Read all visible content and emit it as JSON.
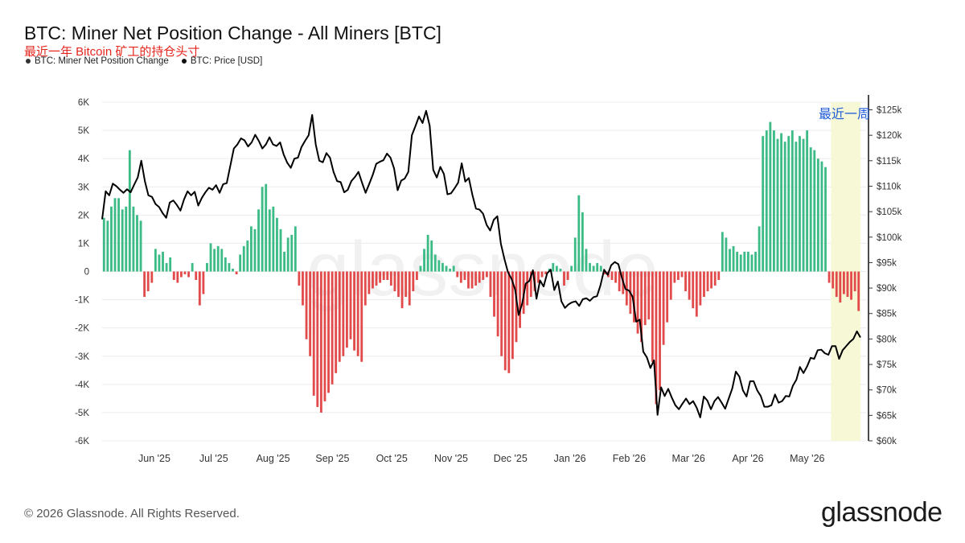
{
  "header": {
    "title": "BTC: Miner Net Position Change - All Miners [BTC]",
    "subtitle": "最近一年 Bitcoin 矿工的持仓头寸"
  },
  "legend": [
    {
      "label": "BTC: Miner Net Position Change",
      "color": "#333333"
    },
    {
      "label": "BTC: Price [USD]",
      "color": "#111111"
    }
  ],
  "annotation": "最近一周",
  "footer": {
    "copyright": "© 2026 Glassnode. All Rights Reserved.",
    "brand": "glassnode",
    "watermark": "glassnode"
  },
  "colors": {
    "positive": "#3dbb87",
    "negative": "#e24b4b",
    "price": "#000000",
    "highlight": "#f7f9d6",
    "annotation": "#1f5bd8"
  },
  "chart_data": {
    "type": "bar",
    "x_ticks": [
      "Jun '25",
      "Jul '25",
      "Aug '25",
      "Sep '25",
      "Oct '25",
      "Nov '25",
      "Dec '25",
      "Jan '26",
      "Feb '26",
      "Mar '26",
      "Apr '26",
      "May '26"
    ],
    "y_left": {
      "range": [
        -6000,
        6000
      ],
      "ticks": [
        "-6K",
        "-5K",
        "-4K",
        "-3K",
        "-2K",
        "-1K",
        "0",
        "1K",
        "2K",
        "3K",
        "4K",
        "5K",
        "6K"
      ]
    },
    "y_right": {
      "range": [
        60000,
        126500
      ],
      "ticks": [
        "$60k",
        "$65k",
        "$70k",
        "$75k",
        "$80k",
        "$85k",
        "$90k",
        "$95k",
        "$100k",
        "$105k",
        "$110k",
        "$115k",
        "$120k",
        "$125k"
      ]
    },
    "series": [
      {
        "name": "BTC: Miner Net Position Change",
        "type": "bar",
        "values": [
          1900,
          1800,
          2300,
          2600,
          2600,
          2200,
          2300,
          4300,
          2300,
          2000,
          1800,
          -900,
          -700,
          -400,
          800,
          600,
          700,
          300,
          500,
          -300,
          -400,
          -200,
          -100,
          -200,
          300,
          -300,
          -1200,
          -800,
          300,
          1000,
          800,
          900,
          800,
          500,
          300,
          100,
          -100,
          600,
          900,
          1100,
          1600,
          1500,
          2200,
          3000,
          3100,
          2200,
          2300,
          1900,
          1500,
          700,
          1200,
          1300,
          1600,
          -500,
          -1200,
          -2400,
          -3000,
          -4400,
          -4800,
          -5000,
          -4600,
          -4300,
          -4000,
          -3600,
          -3200,
          -3000,
          -2700,
          -2400,
          -2800,
          -3000,
          -3200,
          -1200,
          -800,
          -600,
          -500,
          -400,
          -300,
          -300,
          -500,
          -700,
          -900,
          -1300,
          -900,
          -1200,
          -700,
          -300,
          200,
          800,
          1300,
          1100,
          600,
          400,
          300,
          200,
          100,
          200,
          -200,
          -400,
          -300,
          -600,
          -600,
          -500,
          -400,
          -300,
          -200,
          -900,
          -1600,
          -2300,
          -3000,
          -3500,
          -3600,
          -3100,
          -2500,
          -2000,
          -1500,
          -1200,
          -900,
          -700,
          -400,
          -200,
          -100,
          100,
          300,
          200,
          100,
          -500,
          -300,
          200,
          1200,
          2700,
          2100,
          800,
          300,
          200,
          300,
          200,
          -100,
          -200,
          -300,
          -400,
          -700,
          -800,
          -1200,
          -1500,
          -1800,
          -2200,
          -2500,
          -1900,
          -1700,
          -3200,
          -4700,
          -4200,
          -2600,
          -1800,
          -1000,
          -400,
          -300,
          -200,
          -700,
          -1000,
          -1300,
          -1600,
          -1200,
          -900,
          -700,
          -600,
          -500,
          -300,
          1400,
          1200,
          800,
          900,
          700,
          600,
          700,
          700,
          600,
          700,
          1600,
          4800,
          5000,
          5300,
          5000,
          4700,
          4900,
          4600,
          4800,
          5000,
          4600,
          4800,
          4700,
          5000,
          4400,
          4300,
          4000,
          3900,
          3700,
          -400,
          -600,
          -900,
          -1100,
          -800,
          -900,
          -1000,
          -700,
          -1400
        ]
      },
      {
        "name": "BTC: Price [USD]",
        "type": "line",
        "values": [
          103500,
          109000,
          108200,
          110500,
          110000,
          109300,
          108700,
          109400,
          108800,
          110300,
          111700,
          115000,
          111000,
          108200,
          107900,
          106500,
          105900,
          104700,
          103800,
          106800,
          107200,
          106300,
          105200,
          107400,
          109000,
          108200,
          108900,
          106200,
          107700,
          108800,
          109700,
          109300,
          110200,
          108700,
          110400,
          110600,
          114000,
          117400,
          118200,
          119400,
          119000,
          117800,
          118600,
          120100,
          118900,
          117400,
          118200,
          119600,
          118200,
          117900,
          118600,
          116200,
          114600,
          113600,
          115400,
          115600,
          117700,
          118900,
          120000,
          124000,
          118200,
          115000,
          114700,
          116500,
          115600,
          112800,
          111000,
          110800,
          108800,
          109300,
          111000,
          111800,
          112800,
          110700,
          108700,
          110400,
          112200,
          114400,
          114800,
          115100,
          116400,
          115600,
          113500,
          109200,
          111100,
          111500,
          112800,
          120000,
          121800,
          123700,
          122400,
          124800,
          121900,
          113200,
          111700,
          113800,
          112400,
          108400,
          108600,
          109600,
          110700,
          114500,
          110900,
          111600,
          108300,
          105600,
          105400,
          104600,
          102400,
          101300,
          103400,
          104100,
          98700,
          95700,
          93100,
          91800,
          89700,
          84700,
          87000,
          90900,
          91400,
          93500,
          87900,
          91500,
          90300,
          92900,
          93600,
          89600,
          91300,
          87400,
          86100,
          86800,
          87200,
          87400,
          86500,
          87800,
          88000,
          87500,
          88200,
          88400,
          90600,
          93600,
          92600,
          94500,
          95100,
          94700,
          92000,
          89800,
          89500,
          88300,
          83400,
          83800,
          77500,
          76400,
          74300,
          75800,
          65100,
          70500,
          68800,
          70200,
          68500,
          67000,
          66200,
          67300,
          68300,
          67200,
          67800,
          66500,
          64600,
          68700,
          67900,
          66200,
          67800,
          68600,
          67500,
          66300,
          68300,
          70300,
          73600,
          72600,
          69900,
          68700,
          71700,
          71700,
          69900,
          68800,
          66700,
          66700,
          67000,
          69100,
          67500,
          67800,
          68800,
          68700,
          70800,
          72000,
          74500,
          73300,
          74600,
          76300,
          76100,
          77800,
          77900,
          77200,
          76900,
          78600,
          78600,
          76100,
          77800,
          78600,
          79400,
          80000,
          81500,
          80300
        ]
      }
    ]
  }
}
